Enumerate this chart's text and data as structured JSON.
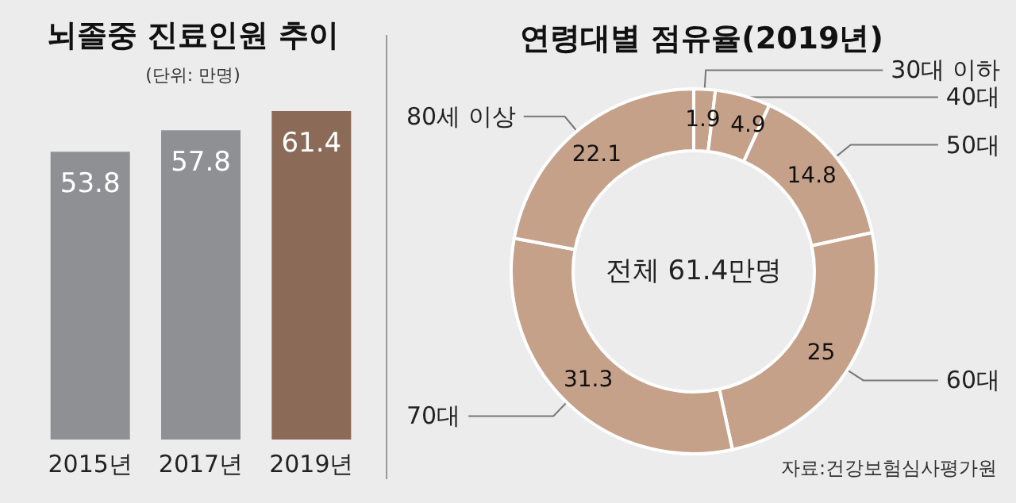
{
  "chart_data": [
    {
      "type": "bar",
      "title": "뇌졸중 진료인원 추이",
      "subtitle": "(단위: 만명)",
      "categories": [
        "2015년",
        "2017년",
        "2019년"
      ],
      "values": [
        53.8,
        57.8,
        61.4
      ],
      "colors": [
        "#8e9093",
        "#8e9093",
        "#8b6a57"
      ],
      "data_labels": true
    },
    {
      "type": "donut",
      "title": "연령대별 점유율(2019년)",
      "categories": [
        "30대 이하",
        "40대",
        "50대",
        "60대",
        "70대",
        "80세 이상"
      ],
      "values": [
        1.9,
        4.9,
        14.8,
        25,
        31.3,
        22.1
      ],
      "colors": [
        "#c6a189",
        "#c6a189",
        "#c6a189",
        "#c6a189",
        "#c6a189",
        "#c6a189"
      ],
      "data_labels": true,
      "annotations": [
        "전체 61.4만명",
        "자료:건강보험심사평가원"
      ]
    }
  ]
}
